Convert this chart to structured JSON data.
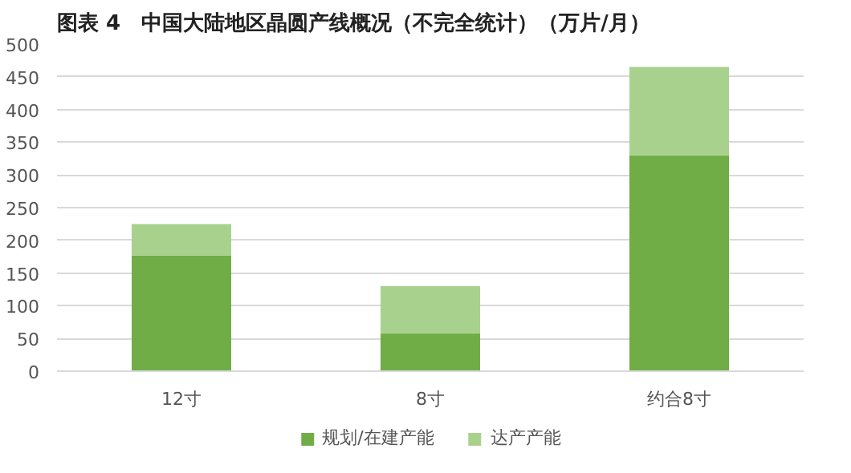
{
  "chart_data": {
    "type": "bar",
    "title": "图表 4　中国大陆地区晶圆产线概况（不完全统计）（万片/月）",
    "categories": [
      "12寸",
      "8寸",
      "约合8寸"
    ],
    "stacked": true,
    "series": [
      {
        "name": "规划/在建产能",
        "color": "#70ad47",
        "values": [
          177,
          58,
          330
        ]
      },
      {
        "name": "达产产能",
        "color": "#a9d18e",
        "values": [
          48,
          72,
          135
        ]
      }
    ],
    "ylim": [
      0,
      500
    ],
    "yticks": [
      0,
      50,
      100,
      150,
      200,
      250,
      300,
      350,
      400,
      450,
      500
    ],
    "grid": "y",
    "legend": "bottom"
  }
}
